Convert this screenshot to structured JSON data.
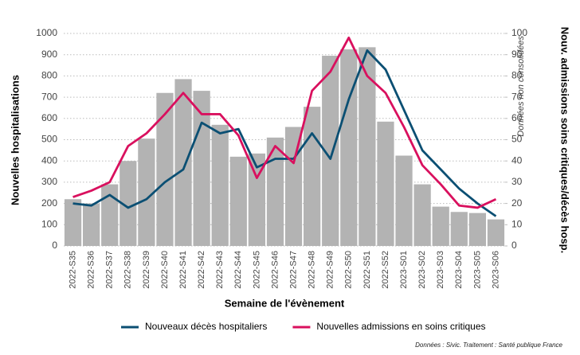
{
  "chart_data": {
    "type": "combo",
    "x_label": "Semaine de l'évènement",
    "y_label": "Nouvelles hospitalisations",
    "y2_label": "Nouv. admissions soins critiques/décès hosp.",
    "annotation": "Données non consolidées",
    "source": "Données : Sivic. Traitement : Santé publique France",
    "categories": [
      "2022-S35",
      "2022-S36",
      "2022-S37",
      "2022-S38",
      "2022-S39",
      "2022-S40",
      "2022-S41",
      "2022-S42",
      "2022-S43",
      "2022-S44",
      "2022-S45",
      "2022-S46",
      "2022-S47",
      "2022-S48",
      "2022-S49",
      "2022-S50",
      "2022-S51",
      "2022-S52",
      "2023-S01",
      "2023-S02",
      "2023-S03",
      "2023-S04",
      "2023-S05",
      "2023-S06"
    ],
    "series": [
      {
        "type": "bar",
        "color": "#b3b3b3",
        "values": [
          220,
          200,
          290,
          400,
          505,
          720,
          785,
          730,
          570,
          420,
          435,
          510,
          560,
          655,
          895,
          925,
          935,
          585,
          425,
          290,
          185,
          160,
          155,
          125
        ]
      },
      {
        "type": "line",
        "axis": "y2",
        "name": "Nouveaux décès hospitaliers",
        "color": "#0b4f73",
        "values": [
          20,
          19,
          24,
          18,
          22,
          30,
          36,
          58,
          53,
          55,
          37,
          41,
          41,
          53,
          41,
          69,
          92,
          83,
          64,
          45,
          36,
          27,
          20,
          14
        ]
      },
      {
        "type": "line",
        "axis": "y2",
        "name": "Nouvelles admissions en soins critiques",
        "color": "#d9105e",
        "values": [
          23,
          26,
          30,
          47,
          53,
          62,
          72,
          62,
          62,
          52,
          32,
          47,
          39,
          73,
          82,
          98,
          80,
          72,
          56,
          38,
          29,
          19,
          18,
          22
        ]
      }
    ],
    "ylim": [
      0,
      1000
    ],
    "yticks": [
      0,
      100,
      200,
      300,
      400,
      500,
      600,
      700,
      800,
      900,
      1000
    ],
    "y2lim": [
      0,
      100
    ],
    "y2ticks": [
      0,
      10,
      20,
      30,
      40,
      50,
      60,
      70,
      80,
      90,
      100
    ],
    "grid": true,
    "legend": "bottom"
  }
}
